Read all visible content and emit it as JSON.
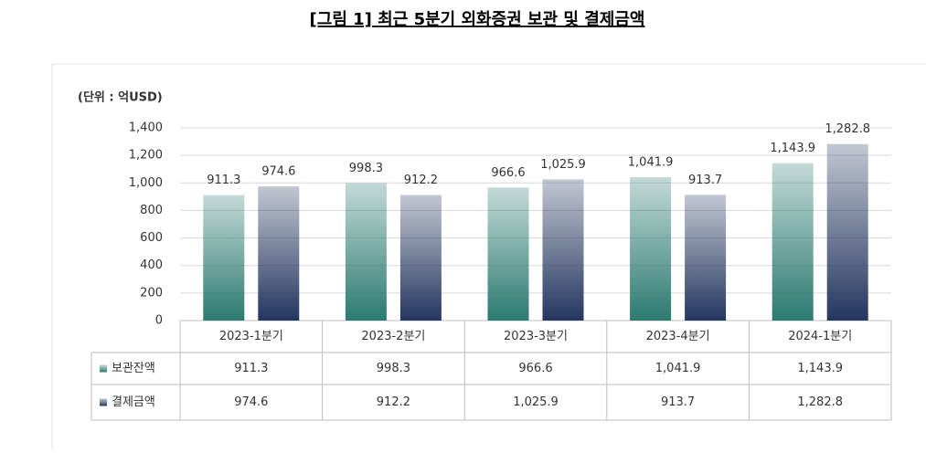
{
  "chart_data": {
    "type": "bar",
    "title": "[그림 1] 최근 5분기 외화증권 보관 및 결제금액",
    "unit_label": "(단위 : 억USD)",
    "categories": [
      "2023-1분기",
      "2023-2분기",
      "2023-3분기",
      "2023-4분기",
      "2024-1분기"
    ],
    "series": [
      {
        "name": "보관잔액",
        "color": "#2b7a70",
        "values": [
          911.3,
          998.3,
          966.6,
          1041.9,
          1143.9
        ],
        "value_labels": [
          "911.3",
          "998.3",
          "966.6",
          "1,041.9",
          "1,143.9"
        ]
      },
      {
        "name": "결제금액",
        "color": "#24365f",
        "values": [
          974.6,
          912.2,
          1025.9,
          913.7,
          1282.8
        ],
        "value_labels": [
          "974.6",
          "912.2",
          "1,025.9",
          "913.7",
          "1,282.8"
        ]
      }
    ],
    "ylim": [
      0,
      1400
    ],
    "yticks": [
      0,
      200,
      400,
      600,
      800,
      {
        "value": 1000,
        "label": "1,000"
      },
      {
        "value": 1200,
        "label": "1,200"
      },
      {
        "value": 1400,
        "label": "1,400"
      }
    ],
    "grid": true
  }
}
